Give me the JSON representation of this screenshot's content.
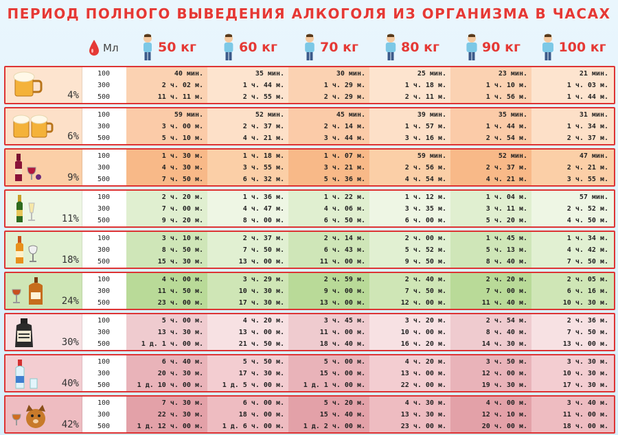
{
  "title": "ПЕРИОД ПОЛНОГО ВЫВЕДЕНИЯ АЛКОГОЛЯ ИЗ ОРГАНИЗМА В ЧАСАХ",
  "header": {
    "ml_label": "Мл",
    "weights": [
      "50 кг",
      "60 кг",
      "70 кг",
      "80 кг",
      "90 кг",
      "100 кг"
    ]
  },
  "volumes": [
    "100",
    "300",
    "500"
  ],
  "rows": [
    {
      "pct": "4%",
      "icon": "beer-mug-icon",
      "bg": "#fde4cf",
      "bg2": "#fbd2b2",
      "values": [
        [
          "40 мин.",
          "2 ч. 02 м.",
          "11 ч. 11 м."
        ],
        [
          "35 мин.",
          "1 ч. 44 м.",
          "2 ч. 55 м."
        ],
        [
          "30 мин.",
          "1 ч. 29 м.",
          "2 ч. 29 м."
        ],
        [
          "25 мин.",
          "1 ч. 18 м.",
          "2 ч. 11 м."
        ],
        [
          "23 мин.",
          "1 ч. 10 м.",
          "1 ч. 56 м."
        ],
        [
          "21 мин.",
          "1 ч. 03 м.",
          "1 ч. 44 м."
        ]
      ]
    },
    {
      "pct": "6%",
      "icon": "beer-mugs-icon",
      "bg": "#fde0c8",
      "bg2": "#fbcba8",
      "values": [
        [
          "59 мин.",
          "3 ч. 00 м.",
          "5 ч. 10 м."
        ],
        [
          "52 мин.",
          "2 ч. 37 м.",
          "4 ч. 21 м."
        ],
        [
          "45 мин.",
          "2 ч. 14 м.",
          "3 ч. 44 м."
        ],
        [
          "39 мин.",
          "1 ч. 57 м.",
          "3 ч. 16 м."
        ],
        [
          "35 мин.",
          "1 ч. 44 м.",
          "2 ч. 54 м."
        ],
        [
          "31 мин.",
          "1 ч. 34 м.",
          "2 ч. 37 м."
        ]
      ]
    },
    {
      "pct": "9%",
      "icon": "wine-bottle-icon",
      "bg": "#fbcfa7",
      "bg2": "#f8b988",
      "values": [
        [
          "1 ч. 30 м.",
          "4 ч. 30 м.",
          "7 ч. 50 м."
        ],
        [
          "1 ч. 18 м.",
          "3 ч. 55 м.",
          "6 ч. 32 м."
        ],
        [
          "1 ч. 07 м.",
          "3 ч. 21 м.",
          "5 ч. 36 м."
        ],
        [
          "59 мин.",
          "2 ч. 56 м.",
          "4 ч. 54 м."
        ],
        [
          "52 мин.",
          "2 ч. 37 м.",
          "4 ч. 21 м."
        ],
        [
          "47 мин.",
          "2 ч. 21 м.",
          "3 ч. 55 м."
        ]
      ]
    },
    {
      "pct": "11%",
      "icon": "champagne-icon",
      "bg": "#eef6e4",
      "bg2": "#e0efd0",
      "values": [
        [
          "2 ч. 20 м.",
          "7 ч. 00 м.",
          "9 ч. 20 м."
        ],
        [
          "1 ч. 36 м.",
          "4 ч. 47 м.",
          "8 ч. 00 м."
        ],
        [
          "1 ч. 22 м.",
          "4 ч. 06 м.",
          "6 ч. 50 м."
        ],
        [
          "1 ч. 12 м.",
          "3 ч. 35 м.",
          "6 ч. 00 м."
        ],
        [
          "1 ч. 04 м.",
          "3 ч. 11 м.",
          "5 ч. 20 м."
        ],
        [
          "57 мин.",
          "2 ч. 52 м.",
          "4 ч. 50 м."
        ]
      ]
    },
    {
      "pct": "18%",
      "icon": "liqueur-bottle-icon",
      "bg": "#e1f0d2",
      "bg2": "#cfe6b8",
      "values": [
        [
          "3 ч. 10 м.",
          "8 ч. 50 м.",
          "15 ч. 30 м."
        ],
        [
          "2 ч. 37 м.",
          "7 ч. 50 м.",
          "13 ч. 00 м."
        ],
        [
          "2 ч. 14 м.",
          "6 ч. 43 м.",
          "11 ч. 00 м."
        ],
        [
          "2 ч. 00 м.",
          "5 ч. 52 м.",
          "9 ч. 50 м."
        ],
        [
          "1 ч. 45 м.",
          "5 ч. 13 м.",
          "8 ч. 40 м."
        ],
        [
          "1 ч. 34 м.",
          "4 ч. 42 м.",
          "7 ч. 50 м."
        ]
      ]
    },
    {
      "pct": "24%",
      "icon": "cognac-bottle-icon",
      "bg": "#cfe6b6",
      "bg2": "#b9da98",
      "values": [
        [
          "4 ч. 00 м.",
          "11 ч. 50 м.",
          "23 ч. 00 м."
        ],
        [
          "3 ч. 29 м.",
          "10 ч. 30 м.",
          "17 ч. 30 м."
        ],
        [
          "2 ч. 59 м.",
          "9 ч. 00 м.",
          "13 ч. 00 м."
        ],
        [
          "2 ч. 40 м.",
          "7 ч. 50 м.",
          "12 ч. 00 м."
        ],
        [
          "2 ч. 20 м.",
          "7 ч. 00 м.",
          "11 ч. 40 м."
        ],
        [
          "2 ч. 05 м.",
          "6 ч. 16 м.",
          "10 ч. 30 м."
        ]
      ]
    },
    {
      "pct": "30%",
      "icon": "whiskey-jug-icon",
      "bg": "#f7e1e3",
      "bg2": "#efcbcf",
      "values": [
        [
          "5 ч. 00 м.",
          "13 ч. 30 м.",
          "1 д. 1 ч. 00 м."
        ],
        [
          "4 ч. 20 м.",
          "13 ч. 00 м.",
          "21 ч. 50 м."
        ],
        [
          "3 ч. 45 м.",
          "11 ч. 00 м.",
          "18 ч. 40 м."
        ],
        [
          "3 ч. 20 м.",
          "10 ч. 00 м.",
          "16 ч. 20 м."
        ],
        [
          "2 ч. 54 м.",
          "8 ч. 40 м.",
          "14 ч. 30 м."
        ],
        [
          "2 ч. 36 м.",
          "7 ч. 50 м.",
          "13 ч. 00 м."
        ]
      ]
    },
    {
      "pct": "40%",
      "icon": "vodka-bottle-icon",
      "bg": "#f3cdd1",
      "bg2": "#e9b3b9",
      "values": [
        [
          "6 ч. 40 м.",
          "20 ч. 30 м.",
          "1 д. 10 ч. 00 м."
        ],
        [
          "5 ч. 50 м.",
          "17 ч. 30 м.",
          "1 д. 5 ч. 00 м."
        ],
        [
          "5 ч. 00 м.",
          "15 ч. 00 м.",
          "1 д. 1 ч. 00 м."
        ],
        [
          "4 ч. 20 м.",
          "13 ч. 00 м.",
          "22 ч. 00 м."
        ],
        [
          "3 ч. 50 м.",
          "12 ч. 00 м.",
          "19 ч. 30 м."
        ],
        [
          "3 ч. 30 м.",
          "10 ч. 30 м.",
          "17 ч. 30 м."
        ]
      ]
    },
    {
      "pct": "42%",
      "icon": "flask-dog-icon",
      "bg": "#eebcc1",
      "bg2": "#e3a1a8",
      "values": [
        [
          "7 ч. 30 м.",
          "22 ч. 30 м.",
          "1 д. 12 ч. 00 м."
        ],
        [
          "6 ч. 00 м.",
          "18 ч. 00 м.",
          "1 д. 6 ч. 00 м."
        ],
        [
          "5 ч. 20 м.",
          "15 ч. 40 м.",
          "1 д. 2 ч. 00 м."
        ],
        [
          "4 ч. 30 м.",
          "13 ч. 30 м.",
          "23 ч. 00 м."
        ],
        [
          "4 ч. 00 м.",
          "12 ч. 10 м.",
          "20 ч. 00 м."
        ],
        [
          "3 ч. 40 м.",
          "11 ч. 00 м.",
          "18 ч. 00 м."
        ]
      ]
    }
  ]
}
